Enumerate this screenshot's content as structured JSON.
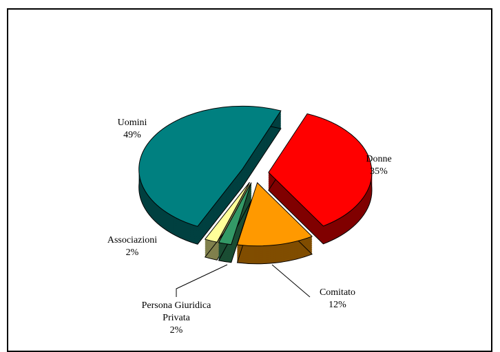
{
  "chart_data": {
    "type": "pie",
    "categories": [
      "Donne",
      "Comitato",
      "Persona Giuridica Privata",
      "Associazioni",
      "Uomini"
    ],
    "values": [
      35,
      12,
      2,
      2,
      49
    ],
    "value_labels": [
      "35%",
      "12%",
      "2%",
      "2%",
      "49%"
    ],
    "colors": [
      "#ff0000",
      "#ff9900",
      "#339966",
      "#ffff99",
      "#008080"
    ]
  }
}
